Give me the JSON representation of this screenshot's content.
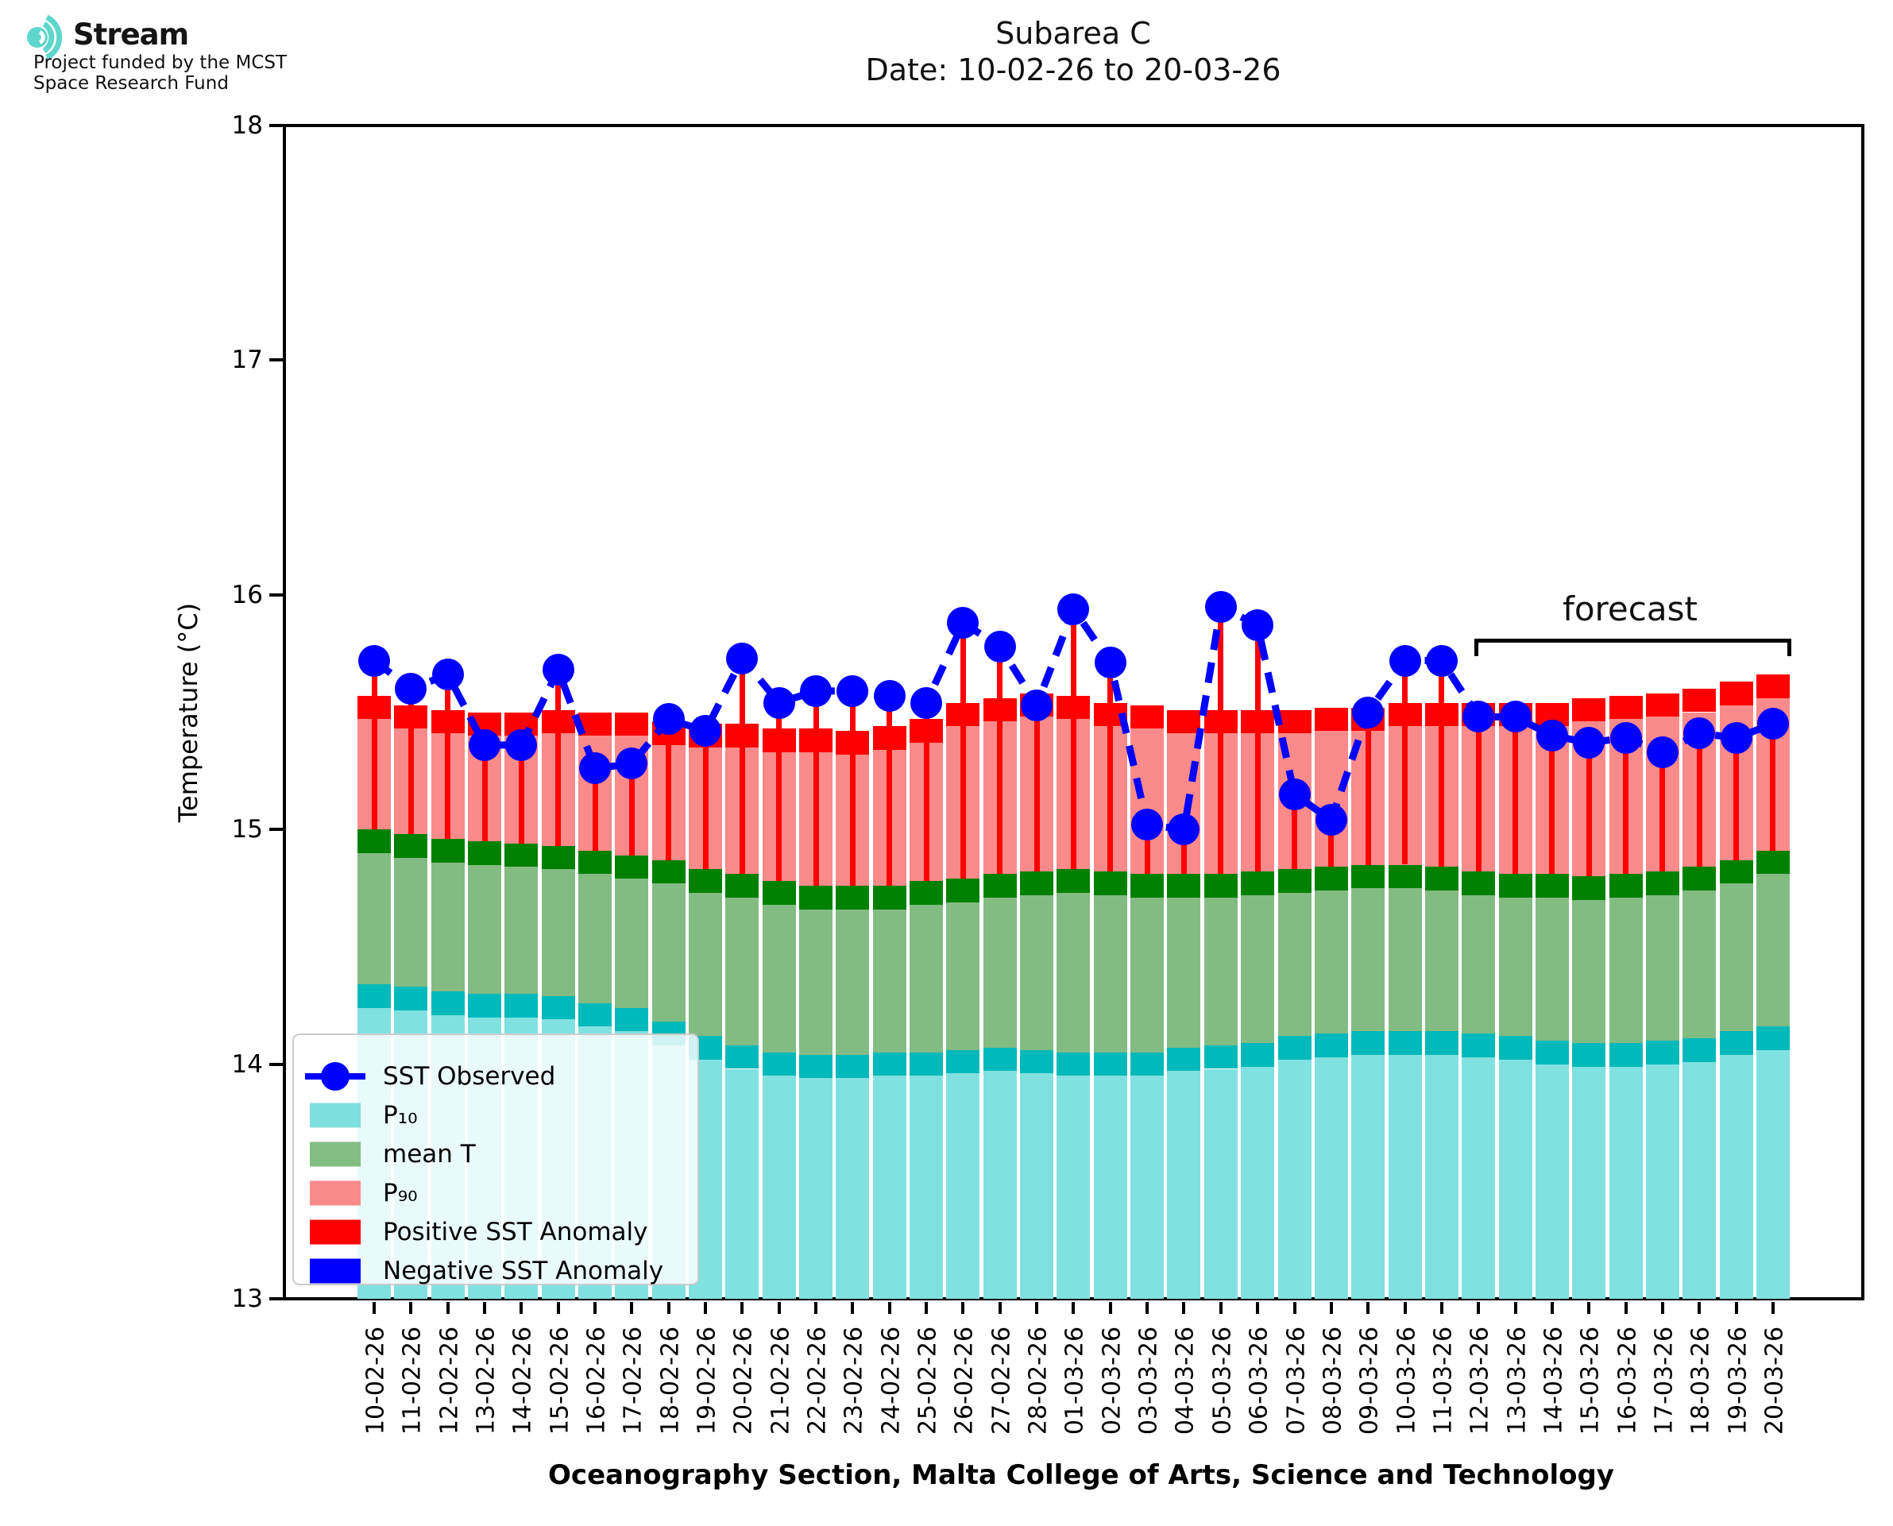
{
  "logo": {
    "brand": "Stream",
    "subtitle1": "Project funded by the MCST",
    "subtitle2": "Space Research Fund",
    "icon_color": "#5fd6cd"
  },
  "title": {
    "line1": "Subarea C",
    "line2": "Date: 10-02-26 to 20-03-26"
  },
  "axes": {
    "ylabel": "Temperature (°C)",
    "yticks": [
      "13",
      "14",
      "15",
      "16",
      "17",
      "18"
    ],
    "ylim": [
      13,
      18
    ]
  },
  "caption": "Oceanography Section, Malta College of Arts, Science and Technology",
  "annotations": {
    "forecast_label": "forecast",
    "forecast_start_category": "12-03-26",
    "forecast_end_category": "20-03-26"
  },
  "legend": {
    "items": [
      {
        "label": "SST Observed",
        "type": "line-marker",
        "color": "#0000fe"
      },
      {
        "label": "P₁₀",
        "type": "patch",
        "color": "#7fdede"
      },
      {
        "label": "mean T",
        "type": "patch",
        "color": "#82bd82"
      },
      {
        "label": "P₉₀",
        "type": "patch",
        "color": "#fb8a8a"
      },
      {
        "label": "Positive SST Anomaly",
        "type": "patch",
        "color": "#fe0000"
      },
      {
        "label": "Negative SST Anomaly",
        "type": "patch",
        "color": "#0000fe"
      }
    ]
  },
  "chart_data": {
    "type": "bar+line",
    "title": "Subarea C",
    "subtitle": "Date: 10-02-26 to 20-03-26",
    "ylabel": "Temperature (°C)",
    "ylim": [
      13,
      18
    ],
    "grid": false,
    "legend_position": "lower left",
    "cap_thickness": 0.1,
    "forecast_span_indices": [
      30,
      38
    ],
    "categories": [
      "10-02-26",
      "11-02-26",
      "12-02-26",
      "13-02-26",
      "14-02-26",
      "15-02-26",
      "16-02-26",
      "17-02-26",
      "18-02-26",
      "19-02-26",
      "20-02-26",
      "21-02-26",
      "22-02-26",
      "23-02-26",
      "24-02-26",
      "25-02-26",
      "26-02-26",
      "27-02-26",
      "28-02-26",
      "01-03-26",
      "02-03-26",
      "03-03-26",
      "04-03-26",
      "05-03-26",
      "06-03-26",
      "07-03-26",
      "08-03-26",
      "09-03-26",
      "10-03-26",
      "11-03-26",
      "12-03-26",
      "13-03-26",
      "14-03-26",
      "15-03-26",
      "16-03-26",
      "17-03-26",
      "18-03-26",
      "19-03-26",
      "20-03-26"
    ],
    "series": [
      {
        "name": "P10",
        "values": [
          14.34,
          14.33,
          14.31,
          14.3,
          14.3,
          14.29,
          14.26,
          14.24,
          14.18,
          14.12,
          14.08,
          14.05,
          14.04,
          14.04,
          14.05,
          14.05,
          14.06,
          14.07,
          14.06,
          14.05,
          14.05,
          14.05,
          14.07,
          14.08,
          14.09,
          14.12,
          14.13,
          14.14,
          14.14,
          14.14,
          14.13,
          14.12,
          14.1,
          14.09,
          14.09,
          14.1,
          14.11,
          14.14,
          14.16
        ]
      },
      {
        "name": "mean T",
        "values": [
          15.0,
          14.98,
          14.96,
          14.95,
          14.94,
          14.93,
          14.91,
          14.89,
          14.87,
          14.83,
          14.81,
          14.78,
          14.76,
          14.76,
          14.76,
          14.78,
          14.79,
          14.81,
          14.82,
          14.83,
          14.82,
          14.81,
          14.81,
          14.81,
          14.82,
          14.83,
          14.84,
          14.85,
          14.85,
          14.84,
          14.82,
          14.81,
          14.81,
          14.8,
          14.81,
          14.82,
          14.84,
          14.87,
          14.91
        ]
      },
      {
        "name": "P90",
        "values": [
          15.57,
          15.53,
          15.51,
          15.5,
          15.5,
          15.51,
          15.5,
          15.5,
          15.46,
          15.45,
          15.45,
          15.43,
          15.43,
          15.42,
          15.44,
          15.47,
          15.54,
          15.56,
          15.58,
          15.57,
          15.54,
          15.53,
          15.51,
          15.51,
          15.51,
          15.51,
          15.52,
          15.52,
          15.54,
          15.54,
          15.54,
          15.54,
          15.54,
          15.56,
          15.57,
          15.58,
          15.6,
          15.63,
          15.66
        ]
      },
      {
        "name": "SST Observed",
        "values": [
          15.72,
          15.6,
          15.66,
          15.36,
          15.36,
          15.68,
          15.26,
          15.28,
          15.47,
          15.42,
          15.73,
          15.54,
          15.59,
          15.59,
          15.57,
          15.54,
          15.88,
          15.78,
          15.53,
          15.94,
          15.71,
          15.02,
          15.0,
          15.95,
          15.87,
          15.15,
          15.04,
          15.5,
          15.72,
          15.72,
          15.48,
          15.48,
          15.4,
          15.37,
          15.39,
          15.33,
          15.41,
          15.39,
          15.45
        ]
      }
    ],
    "colors": {
      "p10_fill": "#81e1e1",
      "p10_cap": "#00b9ba",
      "mean_fill": "#83bc83",
      "mean_cap": "#008000",
      "p90_fill": "#fb8a8a",
      "p90_cap": "#fe0000",
      "positive_anomaly": "#fe0000",
      "negative_anomaly": "#0000fe",
      "observed": "#0000fe"
    }
  }
}
